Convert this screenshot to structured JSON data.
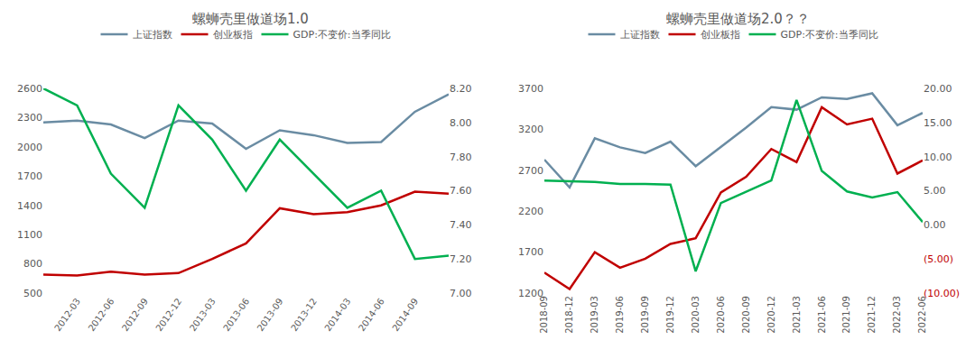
{
  "chart_data": [
    {
      "type": "line",
      "title": "螺蛳壳里做道场1.0",
      "categories": [
        null,
        "2012-03",
        "2012-06",
        "2012-09",
        "2012-12",
        "2013-03",
        "2013-06",
        "2013-09",
        "2013-12",
        "2014-03",
        "2014-06",
        "2014-09",
        null
      ],
      "series": [
        {
          "name": "上证指数",
          "color": "#6a8ca3",
          "values": [
            2250,
            2270,
            2230,
            2090,
            2270,
            2240,
            1980,
            2170,
            2120,
            2040,
            2050,
            2360,
            2540
          ]
        },
        {
          "name": "创业板指",
          "color": "#c00000",
          "values": [
            690,
            680,
            720,
            690,
            705,
            850,
            1010,
            1370,
            1310,
            1330,
            1400,
            1540,
            1520
          ]
        },
        {
          "name": "GDP:不变价:当季同比",
          "color": "#00b050",
          "axis": "y2",
          "values": [
            8.2,
            8.1,
            7.7,
            7.5,
            8.1,
            7.9,
            7.6,
            7.9,
            7.7,
            7.5,
            7.6,
            7.2,
            7.22
          ]
        }
      ],
      "ylim": [
        500,
        2600
      ],
      "yticks": [
        500,
        800,
        1100,
        1400,
        1700,
        2000,
        2300,
        2600
      ],
      "y2lim": [
        7,
        8.2
      ],
      "y2ticks": [
        {
          "value": 7,
          "label": "7.00"
        },
        {
          "value": 7.2,
          "label": "7.20"
        },
        {
          "value": 7.4,
          "label": "7.40"
        },
        {
          "value": 7.6,
          "label": "7.60"
        },
        {
          "value": 7.8,
          "label": "7.80"
        },
        {
          "value": 8,
          "label": "8.00"
        },
        {
          "value": 8.2,
          "label": "8.20"
        }
      ],
      "grid": false,
      "legend": "top"
    },
    {
      "type": "line",
      "title": "螺蛳壳里做道场2.0？？",
      "categories": [
        "2018-09",
        "2018-12",
        "2019-03",
        "2019-06",
        "2019-09",
        "2019-12",
        "2020-03",
        "2020-06",
        "2020-09",
        "2020-12",
        "2021-03",
        "2021-06",
        "2021-09",
        "2021-12",
        "2022-03",
        "2022-06"
      ],
      "series": [
        {
          "name": "上证指数",
          "color": "#6a8ca3",
          "values": [
            2830,
            2490,
            3090,
            2980,
            2910,
            3050,
            2750,
            2980,
            3220,
            3470,
            3440,
            3590,
            3570,
            3640,
            3250,
            3400
          ]
        },
        {
          "name": "创业板指",
          "color": "#c00000",
          "values": [
            1450,
            1250,
            1700,
            1510,
            1620,
            1800,
            1870,
            2430,
            2620,
            2960,
            2800,
            3470,
            3260,
            3330,
            2660,
            2820
          ]
        },
        {
          "name": "GDP:不变价:当季同比",
          "color": "#00b050",
          "axis": "y2",
          "values": [
            6.5,
            6.4,
            6.3,
            6.0,
            6.0,
            5.9,
            -6.8,
            3.2,
            4.9,
            6.5,
            18.3,
            7.9,
            4.9,
            4.0,
            4.8,
            0.4
          ]
        }
      ],
      "ylim": [
        1200,
        3700
      ],
      "yticks": [
        1200,
        1700,
        2200,
        2700,
        3200,
        3700
      ],
      "y2lim": [
        -10,
        20
      ],
      "y2ticks": [
        {
          "value": -10,
          "label": "(10.00)"
        },
        {
          "value": -5,
          "label": "(5.00)"
        },
        {
          "value": 0,
          "label": "0.00"
        },
        {
          "value": 5,
          "label": "5.00"
        },
        {
          "value": 10,
          "label": "10.00"
        },
        {
          "value": 15,
          "label": "15.00"
        },
        {
          "value": 20,
          "label": "20.00"
        }
      ],
      "grid": false,
      "legend": "top"
    }
  ]
}
